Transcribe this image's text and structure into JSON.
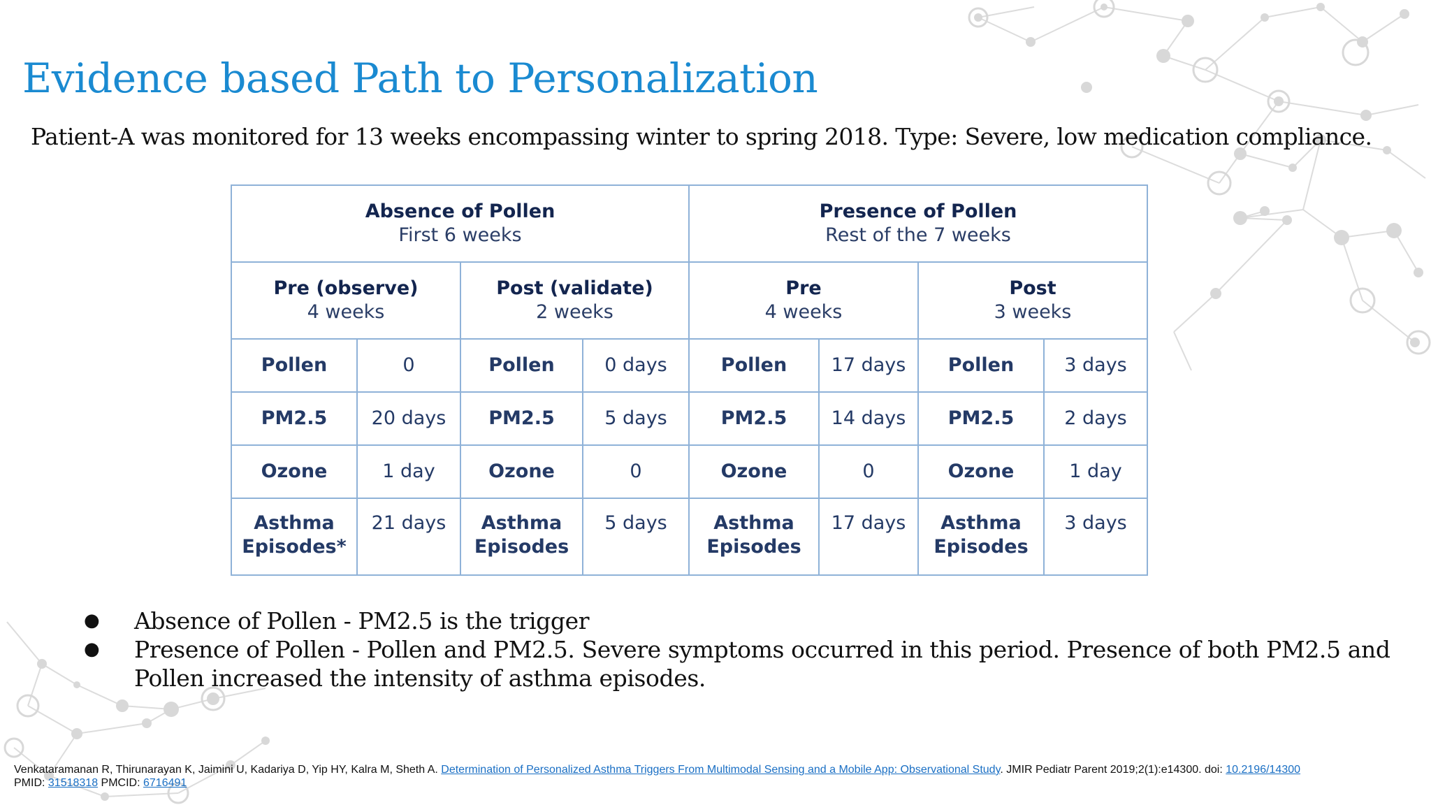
{
  "slide": {
    "title": "Evidence based Path to Personalization",
    "subtitle": "Patient-A was monitored for 13 weeks encompassing winter to spring 2018. Type: Severe, low medication compliance."
  },
  "table": {
    "groups": [
      {
        "title": "Absence of Pollen",
        "sub": "First 6 weeks"
      },
      {
        "title": "Presence of Pollen",
        "sub": "Rest of the 7 weeks"
      }
    ],
    "phases": [
      {
        "title": "Pre (observe)",
        "sub": "4 weeks"
      },
      {
        "title": "Post (validate)",
        "sub": "2 weeks"
      },
      {
        "title": "Pre",
        "sub": "4 weeks"
      },
      {
        "title": "Post",
        "sub": "3 weeks"
      }
    ],
    "rows": [
      {
        "labels": [
          "Pollen",
          "Pollen",
          "Pollen",
          "Pollen"
        ],
        "values": [
          "0",
          "0 days",
          "17 days",
          "3 days"
        ]
      },
      {
        "labels": [
          "PM2.5",
          "PM2.5",
          "PM2.5",
          "PM2.5"
        ],
        "values": [
          "20 days",
          "5 days",
          "14 days",
          "2 days"
        ]
      },
      {
        "labels": [
          "Ozone",
          "Ozone",
          "Ozone",
          "Ozone"
        ],
        "values": [
          "1 day",
          "0",
          "0",
          "1 day"
        ]
      },
      {
        "labels": [
          "Asthma Episodes*",
          "Asthma Episodes",
          "Asthma Episodes",
          "Asthma Episodes"
        ],
        "values": [
          "21 days",
          "5 days",
          "17 days",
          "3 days"
        ]
      }
    ],
    "colors": {
      "border": "#8fb2d8",
      "red": "#9a1a1a",
      "gold": "#bc8a12",
      "green": "#3e5a1e",
      "navy": "#243a66"
    }
  },
  "bullets": [
    "Absence of Pollen - PM2.5 is the trigger",
    "Presence of Pollen - Pollen and PM2.5. Severe symptoms occurred in this period. Presence of both PM2.5 and Pollen increased the intensity of asthma episodes."
  ],
  "citation": {
    "authors": "Venkataramanan R, Thirunarayan K, Jaimini U, Kadariya D, Yip HY, Kalra M, Sheth A.",
    "article_link": "Determination of Personalized Asthma Triggers From Multimodal Sensing and a Mobile App: Observational Study",
    "journal": ". JMIR Pediatr Parent 2019;2(1):e14300. doi:",
    "doi_link": "10.2196/14300",
    "pmid_label": "PMID:",
    "pmid_link": "31518318",
    "pmcid_label": "PMCID:",
    "pmcid_link": "6716491"
  },
  "theme": {
    "title_color": "#1a8ad1",
    "link_color": "#1a6fc4"
  }
}
